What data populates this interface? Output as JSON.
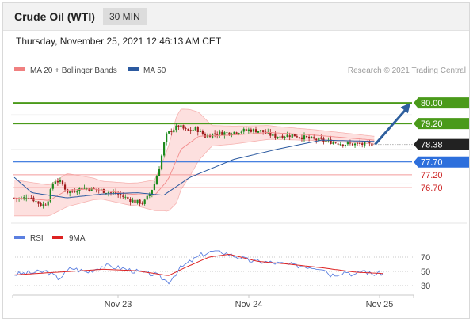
{
  "header": {
    "instrument": "Crude Oil (WTI)",
    "timeframe": "30 MIN"
  },
  "datetime": "Thursday, November 25, 2021 12:46:13 AM CET",
  "legend": {
    "bb_label": "MA 20 + Bollinger Bands",
    "ma50_label": "MA 50",
    "copyright": "Research © 2021 Trading Central"
  },
  "rsi_legend": {
    "rsi_label": "RSI",
    "ma_label": "9MA"
  },
  "colors": {
    "bb": "#f08080",
    "ma50": "#2c5aa0",
    "up": "#1d8a1d",
    "down": "#a01c1c",
    "target": "#4a9a1a",
    "pivot": "#2d6fdc",
    "support": "#cc2222",
    "rsi": "#5b7fe0",
    "rsi_ma": "#dd2222"
  },
  "chart_data": [
    {
      "type": "candlestick",
      "ylim": [
        75.5,
        80.9
      ],
      "x_ticks": [
        "Nov 23",
        "Nov 24",
        "Nov 25"
      ],
      "last_price": 78.38,
      "levels": [
        {
          "value": 80.0,
          "label": "80.00",
          "kind": "target"
        },
        {
          "value": 79.2,
          "label": "79.20",
          "kind": "target"
        },
        {
          "value": 77.7,
          "label": "77.70",
          "kind": "pivot"
        },
        {
          "value": 77.2,
          "label": "77.20",
          "kind": "support"
        },
        {
          "value": 76.7,
          "label": "76.70",
          "kind": "support"
        }
      ],
      "close_keyframes": [
        [
          0,
          76.3
        ],
        [
          12,
          76.25
        ],
        [
          18,
          76.4
        ],
        [
          26,
          76.2
        ],
        [
          34,
          76.0
        ],
        [
          40,
          76.1
        ],
        [
          48,
          77.0
        ],
        [
          56,
          76.9
        ],
        [
          64,
          76.5
        ],
        [
          80,
          76.7
        ],
        [
          100,
          76.6
        ],
        [
          120,
          76.45
        ],
        [
          130,
          76.3
        ],
        [
          140,
          76.15
        ],
        [
          150,
          76.1
        ],
        [
          156,
          76.4
        ],
        [
          162,
          76.8
        ],
        [
          168,
          77.5
        ],
        [
          175,
          78.7
        ],
        [
          180,
          78.9
        ],
        [
          190,
          79.1
        ],
        [
          200,
          78.9
        ],
        [
          210,
          79.0
        ],
        [
          220,
          78.7
        ],
        [
          230,
          78.8
        ],
        [
          250,
          78.85
        ],
        [
          270,
          78.95
        ],
        [
          285,
          78.9
        ],
        [
          290,
          78.8
        ],
        [
          300,
          78.7
        ],
        [
          320,
          78.75
        ],
        [
          340,
          78.6
        ],
        [
          360,
          78.5
        ],
        [
          380,
          78.4
        ],
        [
          410,
          78.38
        ]
      ],
      "ma20_keyframes": [
        [
          0,
          76.3
        ],
        [
          40,
          76.2
        ],
        [
          60,
          76.6
        ],
        [
          90,
          76.65
        ],
        [
          130,
          76.45
        ],
        [
          160,
          76.4
        ],
        [
          175,
          77.0
        ],
        [
          190,
          78.2
        ],
        [
          210,
          78.7
        ],
        [
          250,
          78.75
        ],
        [
          290,
          78.85
        ],
        [
          340,
          78.75
        ],
        [
          410,
          78.55
        ]
      ],
      "bb_width_keyframes": [
        [
          0,
          0.7
        ],
        [
          40,
          0.6
        ],
        [
          60,
          0.65
        ],
        [
          100,
          0.35
        ],
        [
          140,
          0.45
        ],
        [
          160,
          0.6
        ],
        [
          170,
          1.0
        ],
        [
          185,
          1.7
        ],
        [
          200,
          1.3
        ],
        [
          225,
          0.4
        ],
        [
          300,
          0.25
        ],
        [
          410,
          0.15
        ]
      ],
      "ma50_keyframes": [
        [
          0,
          77.1
        ],
        [
          20,
          76.5
        ],
        [
          60,
          76.3
        ],
        [
          100,
          76.45
        ],
        [
          140,
          76.5
        ],
        [
          170,
          76.4
        ],
        [
          200,
          77.1
        ],
        [
          250,
          77.8
        ],
        [
          300,
          78.2
        ],
        [
          350,
          78.55
        ],
        [
          410,
          78.5
        ]
      ],
      "forecast": {
        "from": 78.38,
        "to": 80.0
      }
    },
    {
      "type": "line",
      "name": "RSI",
      "ylim": [
        20,
        80
      ],
      "y_ticks": [
        70,
        50,
        30
      ],
      "rsi_keyframes": [
        [
          0,
          46
        ],
        [
          20,
          48
        ],
        [
          40,
          50
        ],
        [
          55,
          40
        ],
        [
          70,
          55
        ],
        [
          90,
          49
        ],
        [
          110,
          58
        ],
        [
          130,
          55
        ],
        [
          150,
          50
        ],
        [
          175,
          45
        ],
        [
          190,
          35
        ],
        [
          205,
          55
        ],
        [
          230,
          73
        ],
        [
          250,
          80
        ],
        [
          265,
          74
        ],
        [
          290,
          65
        ],
        [
          320,
          62
        ],
        [
          350,
          58
        ],
        [
          380,
          55
        ],
        [
          390,
          45
        ],
        [
          410,
          50
        ],
        [
          420,
          44
        ],
        [
          430,
          52
        ],
        [
          440,
          46
        ],
        [
          455,
          48
        ]
      ],
      "ma9_keyframes": [
        [
          0,
          45
        ],
        [
          40,
          48
        ],
        [
          70,
          50
        ],
        [
          110,
          53
        ],
        [
          150,
          51
        ],
        [
          190,
          44
        ],
        [
          210,
          55
        ],
        [
          240,
          70
        ],
        [
          265,
          74
        ],
        [
          300,
          64
        ],
        [
          340,
          60
        ],
        [
          380,
          55
        ],
        [
          420,
          49
        ],
        [
          455,
          47
        ]
      ]
    }
  ]
}
